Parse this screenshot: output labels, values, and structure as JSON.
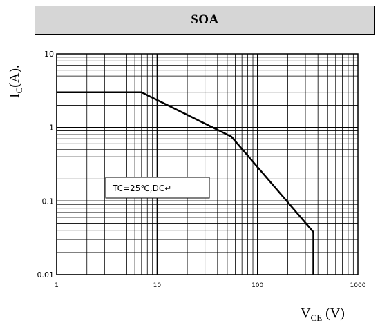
{
  "title": "SOA",
  "ylabel": {
    "main": "I",
    "sub": "C",
    "unit": "(A)."
  },
  "xlabel": {
    "main": "V",
    "sub": "CE",
    "unit": " (V)"
  },
  "chart_data": {
    "type": "line",
    "title": "SOA",
    "xlabel": "VCE (V)",
    "ylabel": "IC(A).",
    "xscale": "log",
    "yscale": "log",
    "xlim": [
      1,
      1000
    ],
    "ylim": [
      0.01,
      10
    ],
    "grid": true,
    "xticks": [
      "1",
      "10",
      "100",
      "1000"
    ],
    "yticks": [
      "0.01",
      "0.1",
      "1",
      "10"
    ],
    "annotation": "TC=25℃,DC↵",
    "series": [
      {
        "x": [
          1,
          7,
          55,
          360,
          360
        ],
        "y": [
          3,
          3,
          0.75,
          0.038,
          0.01
        ]
      }
    ]
  },
  "colors": {
    "banner": "#d6d6d6",
    "line": "#000000",
    "grid": "#000000"
  }
}
